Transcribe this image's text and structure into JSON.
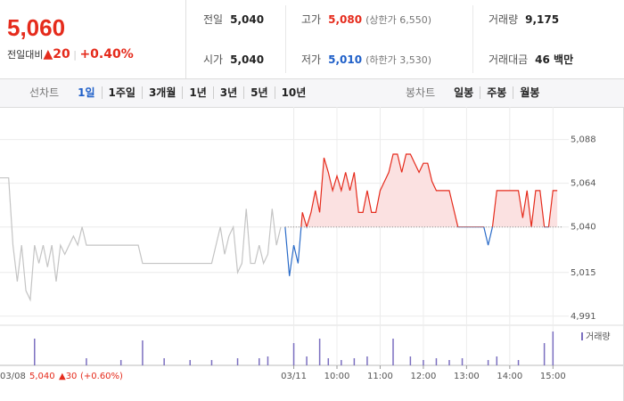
{
  "header": {
    "price": "5,060",
    "change_label": "전일대비",
    "change": "▲20",
    "rate": "+0.40%"
  },
  "info": [
    {
      "label": "전일",
      "value": "5,040"
    },
    {
      "label": "고가",
      "value": "5,080",
      "note": "(상한가 6,550)",
      "color": "#e52b1c"
    },
    {
      "label": "거래량",
      "value": "9,175"
    },
    {
      "label": "시가",
      "value": "5,040"
    },
    {
      "label": "저가",
      "value": "5,010",
      "note": "(하한가 3,530)",
      "color": "#1f5fc8"
    },
    {
      "label": "거래대금",
      "value": "46 백만"
    }
  ],
  "tabs": {
    "line_label": "선차트",
    "line_items": [
      "1일",
      "1주일",
      "3개월",
      "1년",
      "3년",
      "5년",
      "10년"
    ],
    "selected": 0,
    "candle_label": "봉차트",
    "candle_items": [
      "일봉",
      "주봉",
      "월봉"
    ]
  },
  "chart_data": {
    "type": "line",
    "xlim": [
      0,
      130
    ],
    "ylim": [
      4986,
      5103
    ],
    "yticks": [
      {
        "value": 5088,
        "label": "5,088"
      },
      {
        "value": 5064,
        "label": "5,064"
      },
      {
        "value": 5040,
        "label": "5,040"
      },
      {
        "value": 5015,
        "label": "5,015"
      },
      {
        "value": 4991,
        "label": "4,991"
      }
    ],
    "xticks": [
      {
        "value": 68,
        "label": "03/11"
      },
      {
        "value": 78,
        "label": "10:00"
      },
      {
        "value": 88,
        "label": "11:00"
      },
      {
        "value": 98,
        "label": "12:00"
      },
      {
        "value": 108,
        "label": "13:00"
      },
      {
        "value": 118,
        "label": "14:00"
      },
      {
        "value": 128,
        "label": "15:00"
      }
    ],
    "grid": true,
    "baseline": 5040,
    "series": [
      {
        "color": "#c4c4c4",
        "x": [
          0,
          1,
          2,
          3,
          4,
          5,
          6,
          7,
          8,
          9,
          10,
          11,
          12,
          13,
          14,
          15,
          16,
          17,
          18,
          19,
          20,
          21,
          22,
          23,
          24,
          25,
          26,
          27,
          28,
          29,
          30,
          31,
          32,
          33,
          34,
          35,
          36,
          37,
          38,
          39,
          40,
          41,
          42,
          43,
          44,
          45,
          46,
          47,
          48,
          49,
          50,
          51,
          52,
          53,
          54,
          55,
          56,
          57,
          58,
          59,
          60,
          61,
          62,
          63,
          64,
          65
        ],
        "values": [
          5067,
          5067,
          5067,
          5030,
          5010,
          5030,
          5005,
          5000,
          5030,
          5020,
          5030,
          5018,
          5030,
          5010,
          5030,
          5025,
          5030,
          5035,
          5030,
          5040,
          5030,
          5030,
          5030,
          5030,
          5030,
          5030,
          5030,
          5030,
          5030,
          5030,
          5030,
          5030,
          5030,
          5020,
          5020,
          5020,
          5020,
          5020,
          5020,
          5020,
          5020,
          5020,
          5020,
          5020,
          5020,
          5020,
          5020,
          5020,
          5020,
          5020,
          5030,
          5040,
          5025,
          5035,
          5040,
          5015,
          5020,
          5050,
          5020,
          5020,
          5030,
          5020,
          5025,
          5050,
          5030,
          5040
        ]
      },
      {
        "color": "#e52b1c",
        "color_below": "#2a6bc8",
        "fill": "#fbe1e1",
        "x": [
          66,
          67,
          68,
          69,
          70,
          71,
          72,
          73,
          74,
          75,
          76,
          77,
          78,
          79,
          80,
          81,
          82,
          83,
          84,
          85,
          86,
          87,
          88,
          89,
          90,
          91,
          92,
          93,
          94,
          95,
          96,
          97,
          98,
          99,
          100,
          101,
          102,
          103,
          104,
          105,
          106,
          107,
          108,
          109,
          110,
          111,
          112,
          113,
          114,
          115,
          116,
          117,
          118,
          119,
          120,
          121,
          122,
          123,
          124,
          125,
          126,
          127,
          128,
          129
        ],
        "values": [
          5040,
          5013,
          5030,
          5020,
          5048,
          5040,
          5048,
          5060,
          5048,
          5078,
          5070,
          5060,
          5068,
          5060,
          5070,
          5060,
          5070,
          5048,
          5048,
          5060,
          5048,
          5048,
          5060,
          5065,
          5070,
          5080,
          5080,
          5070,
          5080,
          5080,
          5075,
          5070,
          5075,
          5075,
          5065,
          5060,
          5060,
          5060,
          5060,
          5050,
          5040,
          5040,
          5040,
          5040,
          5040,
          5040,
          5040,
          5030,
          5040,
          5060,
          5060,
          5060,
          5060,
          5060,
          5060,
          5045,
          5060,
          5040,
          5060,
          5060,
          5040,
          5040,
          5060,
          5060
        ]
      }
    ],
    "volume": {
      "name": "거래량",
      "color": "#7b6fc0",
      "ylim": [
        0,
        2000
      ],
      "x": [
        8,
        20,
        28,
        33,
        38,
        44,
        49,
        55,
        60,
        62,
        68,
        71,
        74,
        76,
        79,
        82,
        85,
        91,
        95,
        98,
        101,
        104,
        107,
        113,
        115,
        120,
        126,
        128
      ],
      "values": [
        1500,
        400,
        300,
        1400,
        400,
        300,
        300,
        400,
        400,
        500,
        1250,
        500,
        1500,
        400,
        300,
        400,
        500,
        1500,
        500,
        300,
        400,
        300,
        400,
        300,
        500,
        300,
        1250,
        1900
      ]
    },
    "hover": {
      "date": "03/08",
      "price": "5,040",
      "change": "▲30",
      "rate": "(+0.60%)"
    }
  }
}
